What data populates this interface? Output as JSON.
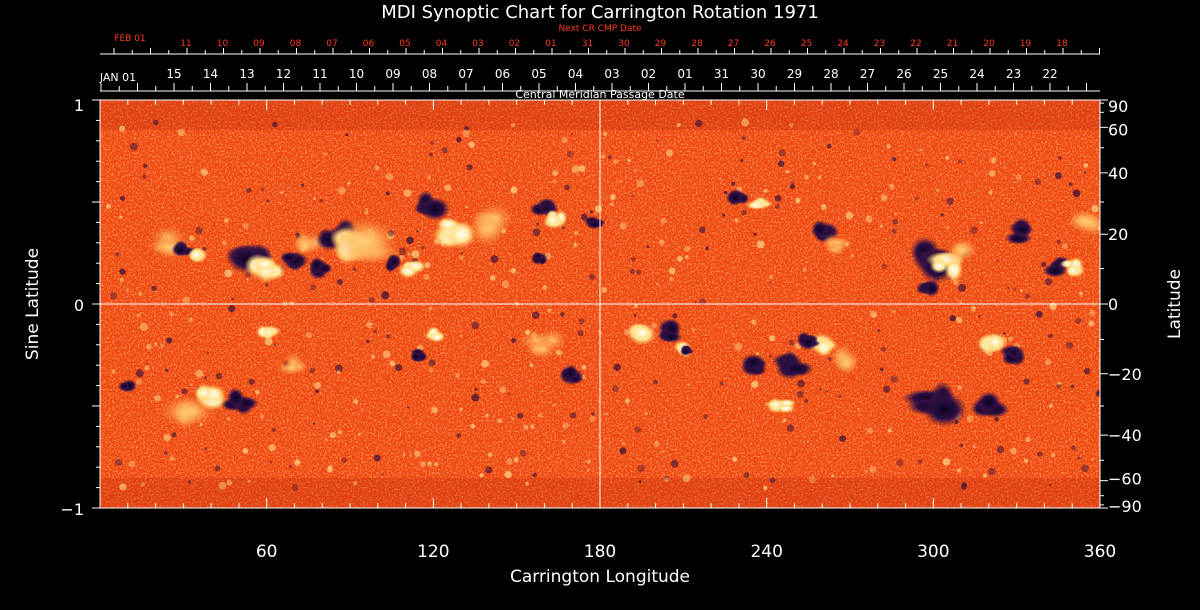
{
  "title": "MDI Synoptic Chart for Carrington Rotation 1971",
  "top_axis": {
    "label": "Next CR CMP Date",
    "start_label": "FEB 01",
    "days": [
      "11",
      "10",
      "09",
      "08",
      "07",
      "06",
      "05",
      "04",
      "03",
      "02",
      "01",
      "31",
      "30",
      "29",
      "28",
      "27",
      "26",
      "25",
      "24",
      "23",
      "22",
      "21",
      "20",
      "19",
      "18"
    ]
  },
  "bottom_date_axis": {
    "start_label": "JAN 01",
    "days": [
      "15",
      "14",
      "13",
      "12",
      "11",
      "10",
      "09",
      "08",
      "07",
      "06",
      "05",
      "04",
      "03",
      "02",
      "01",
      "31",
      "30",
      "29",
      "28",
      "27",
      "26",
      "25",
      "24",
      "23",
      "22"
    ],
    "label": "Central Meridian Passage Date"
  },
  "x_axis": {
    "label": "Carrington Longitude",
    "range": [
      0,
      360
    ],
    "ticks": [
      "60",
      "120",
      "180",
      "240",
      "300",
      "360"
    ]
  },
  "left_axis": {
    "label": "Sine Latitude",
    "range": [
      -1,
      1
    ],
    "ticks": [
      "1",
      "0",
      "−1"
    ]
  },
  "right_axis": {
    "label": "Latitude",
    "ticks": [
      "90",
      "60",
      "40",
      "20",
      "0",
      "−20",
      "−40",
      "−60",
      "−90"
    ]
  },
  "colors": {
    "background_field": "#f04810",
    "positive_polarity": "#fff6d0",
    "negative_polarity": "#1a0a3a",
    "red_labels": "#ff3a1a",
    "axis": "#ffffff"
  }
}
